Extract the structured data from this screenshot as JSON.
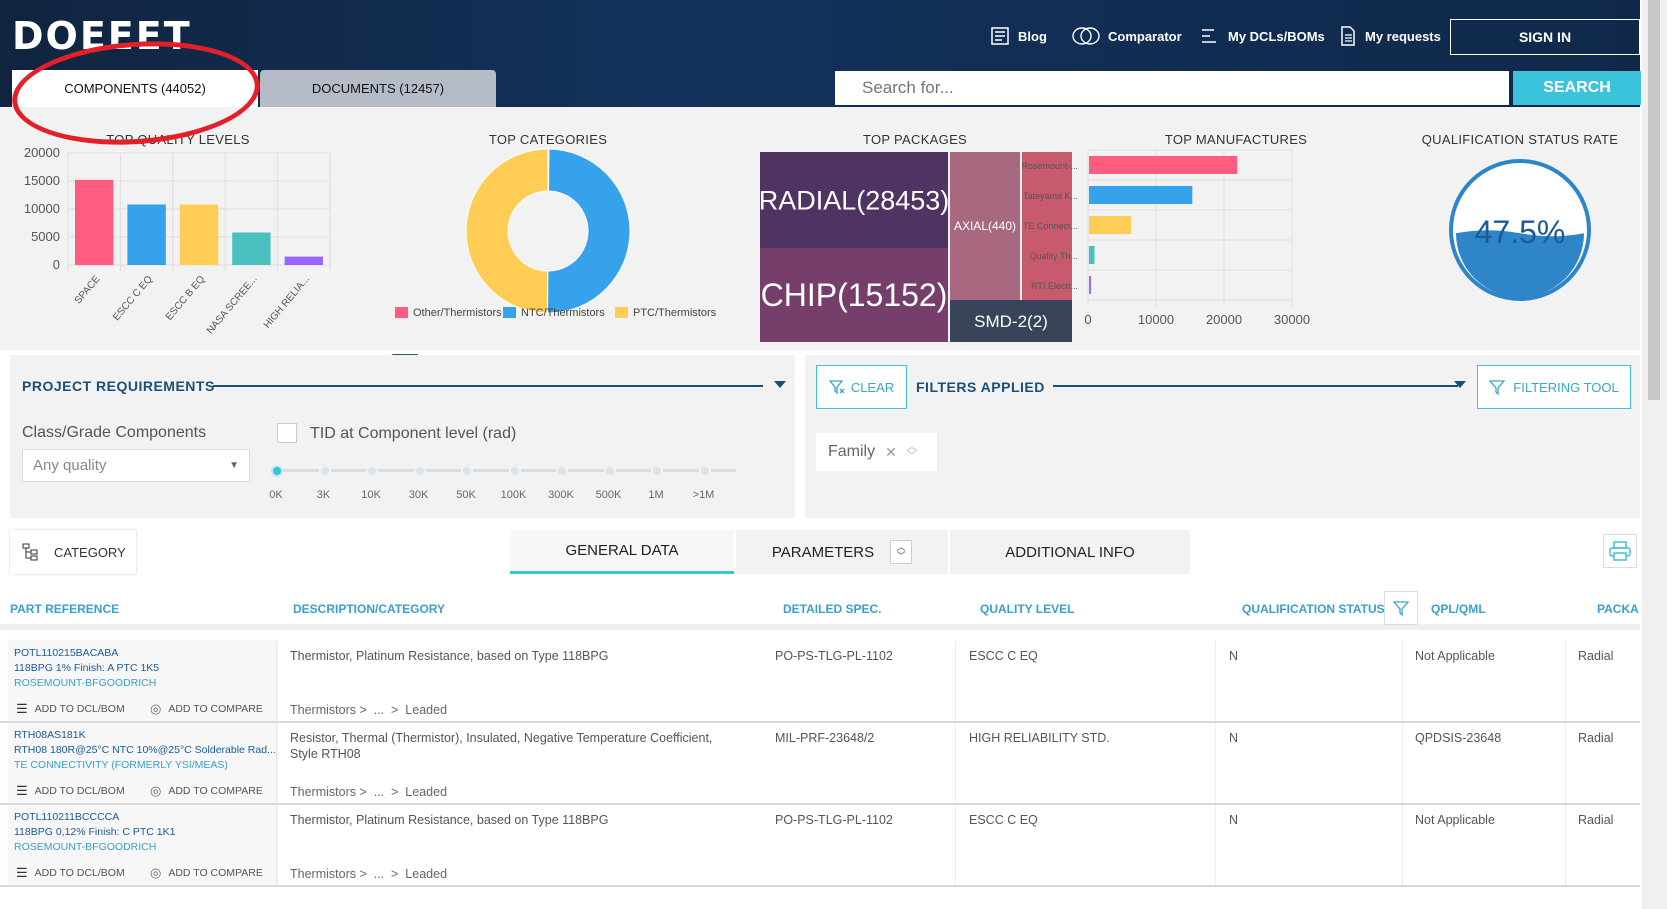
{
  "header": {
    "logo": "DOEEET",
    "nav": [
      {
        "label": "Blog",
        "icon": "blog-icon"
      },
      {
        "label": "Comparator",
        "icon": "comparator-icon"
      },
      {
        "label": "My DCLs/BOMs",
        "icon": "list-icon"
      },
      {
        "label": "My requests",
        "icon": "document-icon"
      }
    ],
    "signin": "SIGN IN",
    "search_placeholder": "Search for...",
    "search_button": "SEARCH"
  },
  "tabs": {
    "components": "COMPONENTS (44052)",
    "documents": "DOCUMENTS (12457)"
  },
  "chart_titles": {
    "quality": "TOP QUALITY LEVELS",
    "categories": "TOP CATEGORIES",
    "packages": "TOP PACKAGES",
    "manufacturers": "TOP MANUFACTURES",
    "qualification": "QUALIFICATION STATUS RATE"
  },
  "chart_data": [
    {
      "type": "bar",
      "title": "TOP QUALITY LEVELS",
      "categories": [
        "SPACE",
        "ESCC C EQ",
        "ESCC B EQ",
        "NASA SCREE...",
        "HIGH RELIA..."
      ],
      "values": [
        15200,
        10800,
        10800,
        5800,
        1500
      ],
      "colors": [
        "#ff5c7f",
        "#36a2eb",
        "#ffcd56",
        "#4bc0c0",
        "#9966ff"
      ],
      "yticks": [
        "20000",
        "15000",
        "10000",
        "5000",
        "0"
      ],
      "ylim": [
        0,
        20000
      ]
    },
    {
      "type": "pie",
      "title": "TOP CATEGORIES",
      "labels": [
        "Other/Thermistors",
        "NTC/Thermistors",
        "PTC/Thermistors"
      ],
      "values": [
        0.2,
        50,
        50
      ],
      "colors": [
        "#ff5c7f",
        "#36a2eb",
        "#ffcd56"
      ]
    },
    {
      "type": "treemap",
      "title": "TOP PACKAGES",
      "labels": [
        "RADIAL(28453)",
        "CHIP(15152)",
        "AXIAL(440)",
        "SMD-2(2)"
      ],
      "values": [
        28453,
        15152,
        440,
        2
      ],
      "colors": [
        "#4f3363",
        "#763e6a",
        "#a8687f",
        "#374459",
        "#c75a6c"
      ]
    },
    {
      "type": "bar",
      "orientation": "horizontal",
      "title": "TOP MANUFACTURES",
      "categories": [
        "Rosemount-...",
        "Tateyama K...",
        "TE Connect...",
        "Quality Th...",
        "RTI Electr..."
      ],
      "values": [
        21800,
        15200,
        6200,
        800,
        300
      ],
      "colors": [
        "#ff5c7f",
        "#36a2eb",
        "#ffcd56",
        "#4bc0c0",
        "#9966ff"
      ],
      "xticks": [
        "0",
        "10000",
        "20000",
        "30000"
      ],
      "xlim": [
        0,
        30000
      ]
    },
    {
      "type": "gauge",
      "title": "QUALIFICATION STATUS RATE",
      "value": "47.5%",
      "fraction": 0.475,
      "color": "#2e86c9"
    }
  ],
  "project": {
    "title": "PROJECT REQUIREMENTS",
    "class_label": "Class/Grade Components",
    "select_value": "Any quality",
    "tid_label": "TID at Component level (rad)",
    "ticks": [
      "0K",
      "3K",
      "10K",
      "30K",
      "50K",
      "100K",
      "300K",
      "500K",
      "1M",
      ">1M"
    ]
  },
  "filters": {
    "clear": "CLEAR",
    "title": "FILTERS APPLIED",
    "tool": "FILTERING TOOL",
    "chip": "Family"
  },
  "datatabs": {
    "category": "CATEGORY",
    "general": "GENERAL DATA",
    "parameters": "PARAMETERS",
    "additional": "ADDITIONAL INFO"
  },
  "columns": {
    "part": "PART REFERENCE",
    "desc": "DESCRIPTION/CATEGORY",
    "spec": "DETAILED SPEC.",
    "quality": "QUALITY LEVEL",
    "qual": "QUALIFICATION STATUS",
    "qpl": "QPL/QML",
    "pack": "PACKA"
  },
  "actions": {
    "add_dcl": "ADD TO DCL/BOM",
    "add_compare": "ADD TO COMPARE"
  },
  "rows": [
    {
      "ref": "POTL110215BACABA",
      "line2": "118BPG 1% Finish: A PTC 1K5",
      "mfr": "ROSEMOUNT-BFGOODRICH",
      "desc": "Thermistor, Platinum Resistance, based on Type 118BPG",
      "desc2": "",
      "path": "Thermistors >  ...  >  Leaded",
      "spec": "PO-PS-TLG-PL-1102",
      "quality": "ESCC C EQ",
      "qual": "N",
      "qpl": "Not Applicable",
      "pack": "Radial"
    },
    {
      "ref": "RTH08AS181K",
      "line2": "RTH08 180R@25°C NTC 10%@25°C Solderable Rad...",
      "mfr": "TE CONNECTIVITY (FORMERLY YSI/MEAS)",
      "desc": "Resistor, Thermal (Thermistor), Insulated, Negative Temperature Coefficient,",
      "desc2": "Style RTH08",
      "path": "Thermistors >  ...  >  Leaded",
      "spec": "MIL-PRF-23648/2",
      "quality": "HIGH RELIABILITY STD.",
      "qual": "N",
      "qpl": "QPDSIS-23648",
      "pack": "Radial"
    },
    {
      "ref": "POTL110211BCCCCA",
      "line2": "118BPG 0,12% Finish: C PTC 1K1",
      "mfr": "ROSEMOUNT-BFGOODRICH",
      "desc": "Thermistor, Platinum Resistance, based on Type 118BPG",
      "desc2": "",
      "path": "Thermistors >  ...  >  Leaded",
      "spec": "PO-PS-TLG-PL-1102",
      "quality": "ESCC C EQ",
      "qual": "N",
      "qpl": "Not Applicable",
      "pack": "Radial"
    }
  ]
}
